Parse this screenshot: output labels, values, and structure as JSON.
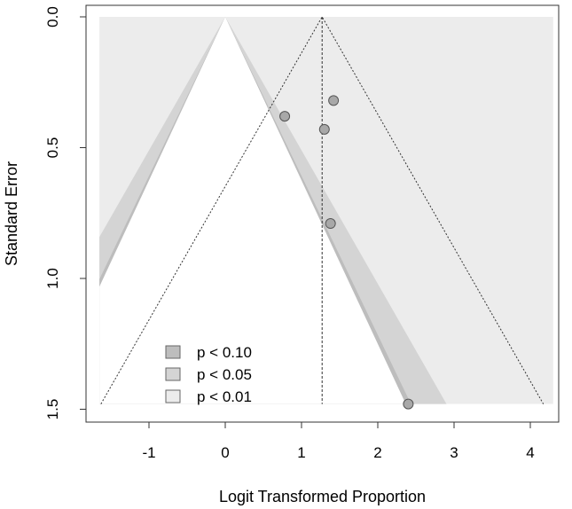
{
  "chart_data": {
    "type": "scatter",
    "subtype": "contour-enhanced funnel plot",
    "xlabel": "Logit Transformed Proportion",
    "ylabel": "Standard Error",
    "xlim": [
      -1.65,
      4.3
    ],
    "ylim": [
      1.5,
      0.0
    ],
    "y_reversed": true,
    "x_ticks": [
      -1,
      0,
      1,
      2,
      3,
      4
    ],
    "x_tick_labels": [
      "-1",
      "0",
      "1",
      "2",
      "3",
      "4"
    ],
    "y_ticks": [
      0.0,
      0.5,
      1.0,
      1.5
    ],
    "y_tick_labels": [
      "0.0",
      "0.5",
      "1.0",
      "1.5"
    ],
    "grid": false,
    "contour_center": 0,
    "summary_estimate": 1.27,
    "se_max": 1.48,
    "points": [
      {
        "x": 0.78,
        "y": 0.38
      },
      {
        "x": 1.42,
        "y": 0.32
      },
      {
        "x": 1.3,
        "y": 0.43
      },
      {
        "x": 1.38,
        "y": 0.79
      },
      {
        "x": 2.4,
        "y": 1.48
      }
    ],
    "contours": [
      {
        "label": "p < 0.10",
        "z": 1.645,
        "color": "#bdbdbd"
      },
      {
        "label": "p < 0.05",
        "z": 1.96,
        "color": "#d4d4d4"
      },
      {
        "label": "p < 0.01",
        "z": 2.576,
        "color": "#ececec"
      }
    ],
    "legend": {
      "position": "bottom-left",
      "entries": [
        "p < 0.10",
        "p < 0.05",
        "p < 0.01"
      ]
    },
    "colors": {
      "point_fill": "#a8a8a8",
      "point_stroke": "#555555",
      "line": "#333333",
      "axis": "#333333"
    }
  }
}
